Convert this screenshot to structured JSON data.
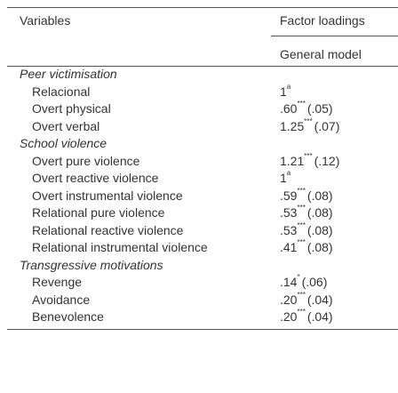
{
  "header": {
    "variables": "Variables",
    "factor_loadings": "Factor loadings",
    "model": "General model"
  },
  "groups": [
    {
      "title": "Peer victimisation",
      "items": [
        {
          "label": "Relacional",
          "main": "1",
          "sup": "a",
          "se": null
        },
        {
          "label": "Overt physical",
          "main": ".60",
          "sup": "***",
          "se": "(.05)"
        },
        {
          "label": "Overt verbal",
          "main": "1.25",
          "sup": "***",
          "se": "(.07)"
        }
      ]
    },
    {
      "title": "School violence",
      "items": [
        {
          "label": "Overt pure violence",
          "main": "1.21",
          "sup": "***",
          "se": "(.12)"
        },
        {
          "label": "Overt reactive violence",
          "main": "1",
          "sup": "a",
          "se": null
        },
        {
          "label": "Overt instrumental violence",
          "main": ".59",
          "sup": "***",
          "se": "(.08)"
        },
        {
          "label": "Relational pure violence",
          "main": ".53",
          "sup": "***",
          "se": "(.08)"
        },
        {
          "label": "Relational reactive violence",
          "main": ".53",
          "sup": "***",
          "se": "(.08)"
        },
        {
          "label": "Relational instrumental violence",
          "main": ".41",
          "sup": "***",
          "se": "(.08)"
        }
      ]
    },
    {
      "title": "Transgressive motivations",
      "items": [
        {
          "label": "Revenge",
          "main": ".14",
          "sup": "*",
          "se": "(.06)"
        },
        {
          "label": "Avoidance",
          "main": ".20",
          "sup": "***",
          "se": "(.04)"
        },
        {
          "label": "Benevolence",
          "main": ".20",
          "sup": "***",
          "se": "(.04)"
        }
      ]
    }
  ]
}
